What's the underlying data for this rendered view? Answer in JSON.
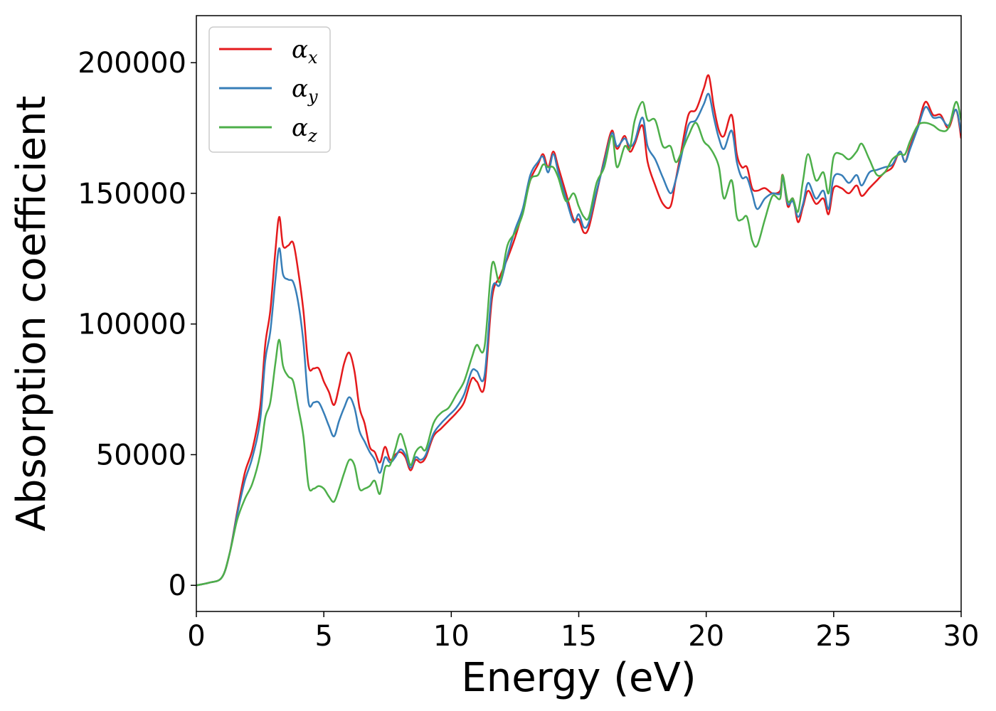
{
  "chart_data": {
    "type": "line",
    "title": "",
    "xlabel": "Energy (eV)",
    "ylabel": "Absorption coefficient",
    "xlim": [
      0,
      30
    ],
    "ylim": [
      -10000,
      218000
    ],
    "xticks": [
      0,
      5,
      10,
      15,
      20,
      25,
      30
    ],
    "yticks": [
      0,
      50000,
      100000,
      150000,
      200000
    ],
    "grid": false,
    "legend_position": "top-left",
    "series": [
      {
        "name": "α",
        "subscript": "x",
        "color": "#e41a1c",
        "x": [
          0,
          0.5,
          1,
          1.3,
          1.6,
          1.9,
          2.2,
          2.5,
          2.7,
          2.9,
          3.1,
          3.25,
          3.4,
          3.6,
          3.8,
          4.0,
          4.2,
          4.4,
          4.6,
          4.8,
          5.0,
          5.2,
          5.4,
          5.6,
          5.8,
          6.0,
          6.2,
          6.4,
          6.6,
          6.8,
          7.0,
          7.2,
          7.4,
          7.6,
          7.8,
          8.0,
          8.2,
          8.4,
          8.6,
          8.8,
          9.0,
          9.3,
          9.6,
          9.9,
          10.2,
          10.5,
          10.8,
          11.0,
          11.3,
          11.6,
          11.9,
          12.2,
          12.5,
          12.8,
          13.1,
          13.4,
          13.6,
          13.8,
          14.0,
          14.2,
          14.5,
          14.8,
          15.0,
          15.2,
          15.4,
          15.7,
          16.0,
          16.3,
          16.5,
          16.8,
          17.0,
          17.2,
          17.5,
          17.7,
          18.0,
          18.3,
          18.6,
          18.8,
          19.0,
          19.3,
          19.6,
          19.9,
          20.1,
          20.3,
          20.5,
          20.7,
          21.0,
          21.2,
          21.4,
          21.6,
          21.8,
          22.0,
          22.3,
          22.6,
          22.9,
          23.0,
          23.2,
          23.4,
          23.6,
          23.8,
          24.0,
          24.3,
          24.6,
          24.8,
          25.0,
          25.3,
          25.6,
          25.9,
          26.1,
          26.4,
          26.7,
          27.0,
          27.3,
          27.6,
          27.8,
          28.0,
          28.3,
          28.6,
          28.9,
          29.2,
          29.5,
          29.8,
          30.0
        ],
        "values": [
          0,
          1000,
          3000,
          12000,
          28000,
          43000,
          52000,
          68000,
          92000,
          105000,
          128000,
          141000,
          130000,
          130000,
          131000,
          120000,
          105000,
          84000,
          83000,
          83000,
          78000,
          74000,
          69000,
          76000,
          85000,
          89000,
          82000,
          68000,
          62000,
          53000,
          51000,
          47000,
          53000,
          48000,
          50000,
          51000,
          49000,
          44000,
          48000,
          47000,
          49000,
          57000,
          60000,
          63000,
          66000,
          70000,
          79000,
          78000,
          76000,
          110000,
          118000,
          125000,
          133000,
          143000,
          155000,
          161000,
          165000,
          160000,
          166000,
          160000,
          150000,
          140000,
          140000,
          135000,
          137000,
          150000,
          163000,
          174000,
          167000,
          172000,
          166000,
          169000,
          176000,
          162000,
          153000,
          146000,
          145000,
          155000,
          165000,
          180000,
          182000,
          190000,
          195000,
          183000,
          174000,
          172000,
          180000,
          165000,
          160000,
          160000,
          152000,
          151000,
          152000,
          150000,
          151000,
          157000,
          145000,
          148000,
          139000,
          145000,
          151000,
          146000,
          148000,
          142000,
          152000,
          152000,
          150000,
          153000,
          149000,
          152000,
          155000,
          158000,
          160000,
          166000,
          162000,
          168000,
          176000,
          185000,
          180000,
          180000,
          175000,
          182000,
          171000
        ]
      },
      {
        "name": "α",
        "subscript": "y",
        "color": "#377eb8",
        "x": [
          0,
          0.5,
          1,
          1.3,
          1.6,
          1.9,
          2.2,
          2.5,
          2.7,
          2.9,
          3.1,
          3.25,
          3.4,
          3.6,
          3.8,
          4.0,
          4.2,
          4.4,
          4.6,
          4.8,
          5.0,
          5.2,
          5.4,
          5.6,
          5.8,
          6.0,
          6.2,
          6.4,
          6.6,
          6.8,
          7.0,
          7.2,
          7.4,
          7.6,
          7.8,
          8.0,
          8.2,
          8.4,
          8.6,
          8.8,
          9.0,
          9.3,
          9.6,
          9.9,
          10.2,
          10.5,
          10.8,
          11.0,
          11.3,
          11.6,
          11.9,
          12.2,
          12.5,
          12.8,
          13.1,
          13.4,
          13.6,
          13.8,
          14.0,
          14.2,
          14.5,
          14.8,
          15.0,
          15.2,
          15.4,
          15.7,
          16.0,
          16.3,
          16.5,
          16.8,
          17.0,
          17.2,
          17.5,
          17.7,
          18.0,
          18.3,
          18.6,
          18.8,
          19.0,
          19.3,
          19.6,
          19.9,
          20.1,
          20.3,
          20.5,
          20.7,
          21.0,
          21.2,
          21.4,
          21.6,
          21.8,
          22.0,
          22.3,
          22.6,
          22.9,
          23.0,
          23.2,
          23.4,
          23.6,
          23.8,
          24.0,
          24.3,
          24.6,
          24.8,
          25.0,
          25.3,
          25.6,
          25.9,
          26.1,
          26.4,
          26.7,
          27.0,
          27.3,
          27.6,
          27.8,
          28.0,
          28.3,
          28.6,
          28.9,
          29.2,
          29.5,
          29.8,
          30.0
        ],
        "values": [
          0,
          1000,
          3000,
          12000,
          27000,
          40000,
          49000,
          63000,
          86000,
          97000,
          117000,
          129000,
          119000,
          117000,
          116000,
          108000,
          93000,
          70000,
          70000,
          70000,
          66000,
          61000,
          57000,
          63000,
          68000,
          72000,
          68000,
          59000,
          55000,
          51000,
          48000,
          43000,
          49000,
          47000,
          49000,
          52000,
          50000,
          45000,
          49000,
          48000,
          50000,
          58000,
          62000,
          65000,
          68000,
          73000,
          82000,
          82000,
          80000,
          113000,
          115000,
          126000,
          136000,
          144000,
          157000,
          162000,
          164000,
          158000,
          165000,
          158000,
          148000,
          139000,
          142000,
          137000,
          139000,
          151000,
          162000,
          173000,
          168000,
          171000,
          168000,
          170000,
          179000,
          168000,
          163000,
          156000,
          150000,
          155000,
          163000,
          176000,
          178000,
          184000,
          188000,
          179000,
          171000,
          167000,
          174000,
          162000,
          156000,
          156000,
          150000,
          144000,
          148000,
          150000,
          150000,
          156000,
          146000,
          147000,
          141000,
          146000,
          154000,
          148000,
          151000,
          144000,
          156000,
          157000,
          154000,
          157000,
          153000,
          158000,
          159000,
          160000,
          161000,
          166000,
          162000,
          167000,
          175000,
          183000,
          179000,
          179000,
          176000,
          182000,
          173000
        ]
      },
      {
        "name": "α",
        "subscript": "z",
        "color": "#4daf4a",
        "x": [
          0,
          0.5,
          1,
          1.3,
          1.6,
          1.9,
          2.2,
          2.5,
          2.7,
          2.9,
          3.1,
          3.25,
          3.4,
          3.6,
          3.8,
          4.0,
          4.2,
          4.4,
          4.6,
          4.8,
          5.0,
          5.2,
          5.4,
          5.6,
          5.8,
          6.0,
          6.2,
          6.4,
          6.6,
          6.8,
          7.0,
          7.2,
          7.4,
          7.6,
          7.8,
          8.0,
          8.2,
          8.4,
          8.6,
          8.8,
          9.0,
          9.3,
          9.6,
          9.9,
          10.2,
          10.5,
          10.8,
          11.0,
          11.3,
          11.6,
          11.9,
          12.2,
          12.5,
          12.8,
          13.1,
          13.4,
          13.6,
          13.8,
          14.0,
          14.2,
          14.5,
          14.8,
          15.0,
          15.2,
          15.4,
          15.7,
          16.0,
          16.3,
          16.5,
          16.8,
          17.0,
          17.2,
          17.5,
          17.7,
          18.0,
          18.3,
          18.6,
          18.8,
          19.0,
          19.3,
          19.6,
          19.9,
          20.1,
          20.3,
          20.5,
          20.7,
          21.0,
          21.2,
          21.4,
          21.6,
          21.8,
          22.0,
          22.3,
          22.6,
          22.9,
          23.0,
          23.2,
          23.4,
          23.6,
          23.8,
          24.0,
          24.3,
          24.6,
          24.8,
          25.0,
          25.3,
          25.6,
          25.9,
          26.1,
          26.4,
          26.7,
          27.0,
          27.3,
          27.6,
          27.8,
          28.0,
          28.3,
          28.6,
          28.9,
          29.2,
          29.5,
          29.8,
          30.0
        ],
        "values": [
          0,
          1000,
          3000,
          12000,
          25000,
          33000,
          39000,
          50000,
          64000,
          70000,
          85000,
          94000,
          84000,
          80000,
          78000,
          68000,
          57000,
          38000,
          37000,
          38000,
          37000,
          34000,
          32000,
          37000,
          43000,
          48000,
          46000,
          37000,
          37000,
          38000,
          40000,
          35000,
          45000,
          46000,
          52000,
          58000,
          53000,
          46000,
          51000,
          53000,
          52000,
          62000,
          66000,
          68000,
          73000,
          78000,
          87000,
          92000,
          91000,
          123000,
          116000,
          130000,
          135000,
          142000,
          155000,
          157000,
          161000,
          160000,
          160000,
          156000,
          147000,
          150000,
          145000,
          141000,
          141000,
          154000,
          160000,
          172000,
          160000,
          168000,
          167000,
          178000,
          185000,
          178000,
          178000,
          168000,
          168000,
          162000,
          165000,
          172000,
          177000,
          170000,
          168000,
          165000,
          160000,
          148000,
          155000,
          141000,
          140000,
          141000,
          132000,
          130000,
          140000,
          149000,
          148000,
          157000,
          147000,
          148000,
          143000,
          155000,
          165000,
          155000,
          158000,
          150000,
          164000,
          165000,
          163000,
          166000,
          169000,
          163000,
          157000,
          158000,
          163000,
          165000,
          165000,
          170000,
          176000,
          177000,
          176000,
          174000,
          175000,
          185000,
          178000
        ]
      }
    ]
  }
}
